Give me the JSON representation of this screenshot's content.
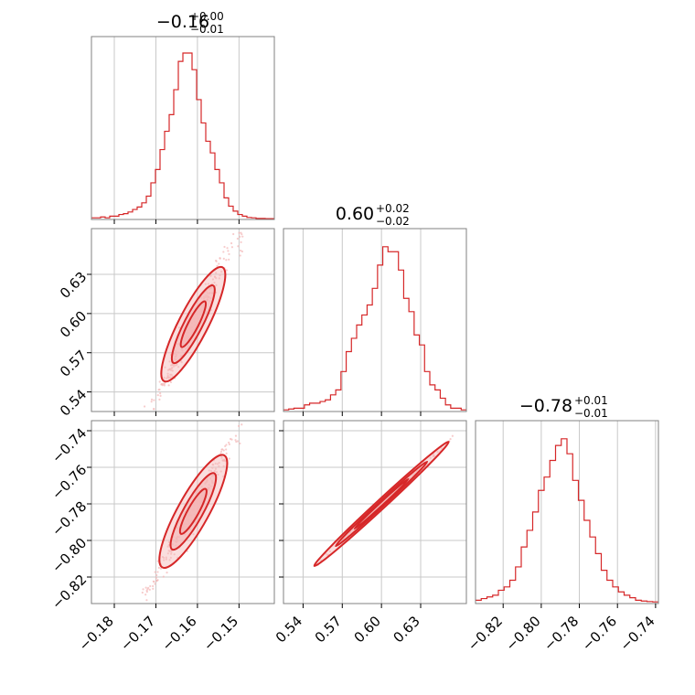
{
  "colors": {
    "accent": "#d62728",
    "accent_light": "#f4b6b6",
    "grid": "#c8c8c8",
    "frame": "#808080"
  },
  "chart_data": {
    "type": "corner",
    "panels": {
      "hist_0": {
        "type": "histogram",
        "title": {
          "median": "−0.16",
          "upper": "+0.00",
          "lower": "−0.01"
        },
        "xlim": [
          -0.1855,
          -0.1415
        ],
        "x_ticks": [
          -0.18,
          -0.17,
          -0.16,
          -0.15
        ],
        "bin_values": [
          0.01,
          0.01,
          0.015,
          0.01,
          0.02,
          0.02,
          0.03,
          0.035,
          0.045,
          0.06,
          0.075,
          0.1,
          0.14,
          0.22,
          0.3,
          0.42,
          0.53,
          0.63,
          0.78,
          0.95,
          1.0,
          1.0,
          0.9,
          0.72,
          0.58,
          0.47,
          0.4,
          0.3,
          0.22,
          0.13,
          0.08,
          0.05,
          0.03,
          0.02,
          0.012,
          0.01,
          0.006,
          0.006,
          0.005,
          0.005
        ]
      },
      "hist_1": {
        "type": "histogram",
        "title": {
          "median": "0.60",
          "upper": "+0.02",
          "lower": "−0.02"
        },
        "xlim": [
          0.525,
          0.665
        ],
        "x_ticks": [
          0.54,
          0.57,
          0.6,
          0.63
        ],
        "tick_labels": [
          "0.54",
          "0.57",
          "0.60",
          "0.63"
        ],
        "bin_values": [
          0.01,
          0.015,
          0.02,
          0.02,
          0.04,
          0.05,
          0.05,
          0.06,
          0.07,
          0.1,
          0.13,
          0.24,
          0.36,
          0.44,
          0.52,
          0.58,
          0.64,
          0.74,
          0.88,
          0.99,
          0.96,
          0.96,
          0.85,
          0.68,
          0.6,
          0.46,
          0.4,
          0.24,
          0.16,
          0.13,
          0.08,
          0.04,
          0.02,
          0.02,
          0.01
        ]
      },
      "hist_2": {
        "type": "histogram",
        "title": {
          "median": "−0.78",
          "upper": "+0.01",
          "lower": "−0.01"
        },
        "xlim": [
          -0.8345,
          -0.7385
        ],
        "x_ticks": [
          -0.82,
          -0.8,
          -0.78,
          -0.76,
          -0.74
        ],
        "tick_labels": [
          "−0.82",
          "−0.80",
          "−0.78",
          "−0.76",
          "−0.74"
        ],
        "bin_values": [
          0.02,
          0.03,
          0.04,
          0.05,
          0.08,
          0.1,
          0.14,
          0.22,
          0.34,
          0.44,
          0.55,
          0.68,
          0.76,
          0.86,
          0.95,
          0.99,
          0.9,
          0.74,
          0.62,
          0.5,
          0.4,
          0.3,
          0.2,
          0.14,
          0.1,
          0.07,
          0.05,
          0.035,
          0.02,
          0.015,
          0.012,
          0.01
        ]
      },
      "scatter_1_0": {
        "type": "scatter_contour",
        "x": "param_0",
        "y": "param_1",
        "xlim": [
          -0.1855,
          -0.1415
        ],
        "ylim": [
          0.525,
          0.665
        ],
        "y_ticks": [
          0.54,
          0.57,
          0.6,
          0.63
        ],
        "y_tick_labels": [
          "0.54",
          "0.57",
          "0.60",
          "0.63"
        ],
        "trend": {
          "slope": 6.2,
          "intercept": 1.59
        }
      },
      "scatter_2_0": {
        "type": "scatter_contour",
        "x": "param_0",
        "y": "param_2",
        "xlim": [
          -0.1855,
          -0.1415
        ],
        "ylim": [
          -0.8345,
          -0.7345
        ],
        "y_ticks": [
          -0.82,
          -0.8,
          -0.78,
          -0.76,
          -0.74
        ],
        "y_tick_labels": [
          "−0.82",
          "−0.80",
          "−0.78",
          "−0.76",
          "−0.74"
        ],
        "x_tick_labels": [
          "−0.18",
          "−0.17",
          "−0.16",
          "−0.15"
        ],
        "trend": {
          "slope": 4.1,
          "intercept": -0.124
        }
      },
      "scatter_2_1": {
        "type": "scatter_contour",
        "x": "param_1",
        "y": "param_2",
        "xlim": [
          0.525,
          0.665
        ],
        "ylim": [
          -0.8345,
          -0.7345
        ],
        "trend": {
          "slope": 0.66,
          "intercept": -1.176
        }
      }
    }
  }
}
